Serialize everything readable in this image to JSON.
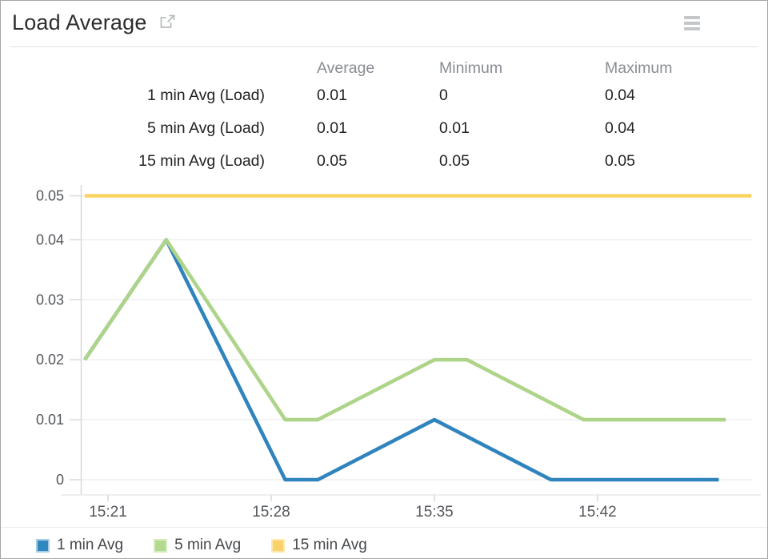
{
  "header": {
    "title": "Load Average"
  },
  "stats_table": {
    "columns": [
      "Average",
      "Minimum",
      "Maximum"
    ],
    "rows": [
      {
        "label": "1 min Avg (Load)",
        "average": "0.01",
        "minimum": "0",
        "maximum": "0.04"
      },
      {
        "label": "5 min Avg (Load)",
        "average": "0.01",
        "minimum": "0.01",
        "maximum": "0.04"
      },
      {
        "label": "15 min Avg (Load)",
        "average": "0.05",
        "minimum": "0.05",
        "maximum": "0.05"
      }
    ]
  },
  "chart_data": {
    "type": "line",
    "title": "Load Average",
    "xlabel": "",
    "ylabel": "",
    "x_unit": "minutes after 15:20",
    "xlim": [
      0,
      28.6
    ],
    "ylim": [
      0,
      0.05
    ],
    "grid": "horizontal",
    "legend_position": "bottom-left",
    "x_ticks": [
      {
        "t": 1,
        "label": "15:21"
      },
      {
        "t": 8,
        "label": "15:28"
      },
      {
        "t": 15,
        "label": "15:35"
      },
      {
        "t": 22,
        "label": "15:42"
      }
    ],
    "y_ticks": [
      {
        "v": 0,
        "label": "0"
      },
      {
        "v": 0.01,
        "label": "0.01"
      },
      {
        "v": 0.02,
        "label": "0.02"
      },
      {
        "v": 0.03,
        "label": "0.03"
      },
      {
        "v": 0.04,
        "label": "0.04"
      },
      {
        "v": 0.05,
        "label": "0.05"
      }
    ],
    "series": [
      {
        "name": "1 min Avg",
        "color": "#3084bd",
        "points": [
          [
            0,
            0.02
          ],
          [
            3.5,
            0.04
          ],
          [
            8.6,
            0
          ],
          [
            10,
            0
          ],
          [
            15,
            0.01
          ],
          [
            20,
            0
          ],
          [
            27.2,
            0
          ]
        ]
      },
      {
        "name": "5 min Avg",
        "color": "#aed489",
        "points": [
          [
            0,
            0.02
          ],
          [
            3.5,
            0.04
          ],
          [
            8.6,
            0.01
          ],
          [
            10,
            0.01
          ],
          [
            15,
            0.02
          ],
          [
            16.4,
            0.02
          ],
          [
            21.4,
            0.01
          ],
          [
            27.5,
            0.01
          ]
        ]
      },
      {
        "name": "15 min Avg",
        "color": "#fcd35f",
        "points": [
          [
            0,
            0.05
          ],
          [
            28.6,
            0.05
          ]
        ]
      }
    ]
  },
  "legend": {
    "items": [
      {
        "label": "1 min Avg",
        "color": "#3187c0",
        "border": "#a7cde6"
      },
      {
        "label": "5 min Avg",
        "color": "#b2d98e",
        "border": "#d5ebc0"
      },
      {
        "label": "15 min Avg",
        "color": "#fad26b",
        "border": "#fde8af"
      }
    ]
  }
}
